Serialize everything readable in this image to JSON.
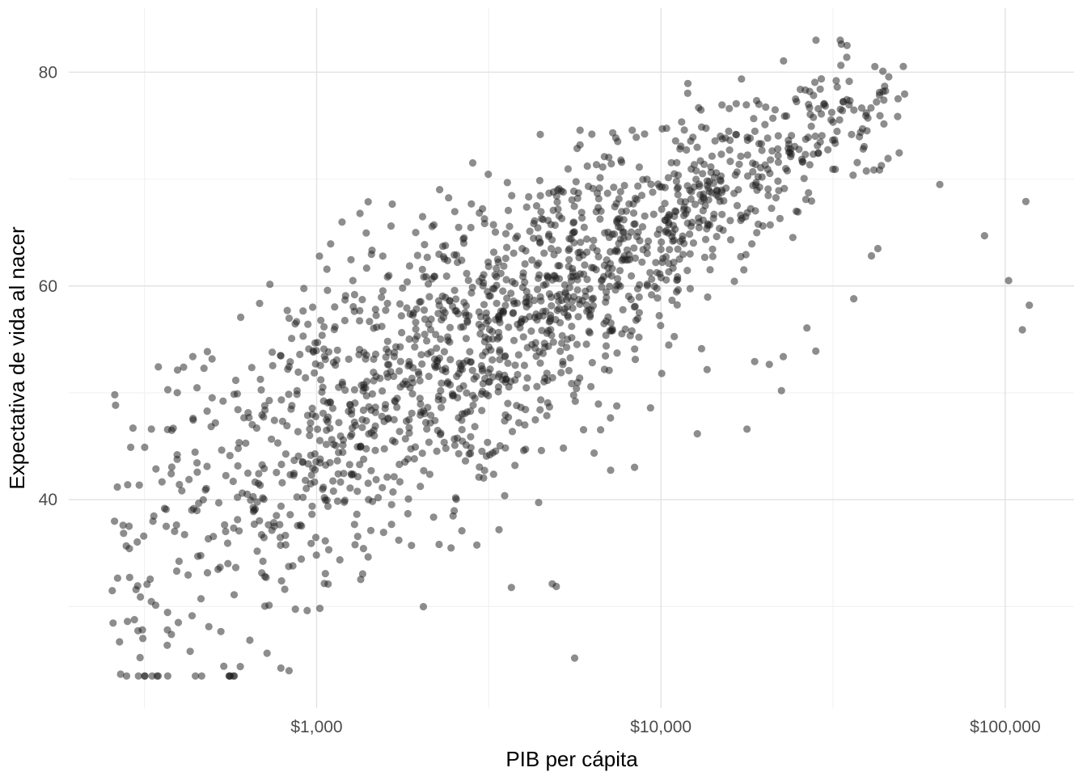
{
  "chart_data": {
    "type": "scatter",
    "title": "",
    "xlabel": "PIB per cápita",
    "ylabel": "Expectativa de vida al nacer",
    "x_scale": "log10",
    "x_ticks": [
      {
        "value": 1000,
        "log10": 3,
        "label": "$1,000"
      },
      {
        "value": 10000,
        "log10": 4,
        "label": "$10,000"
      },
      {
        "value": 100000,
        "log10": 5,
        "label": "$100,000"
      }
    ],
    "y_ticks": [
      {
        "value": 40,
        "label": "40"
      },
      {
        "value": 60,
        "label": "60"
      },
      {
        "value": 80,
        "label": "80"
      }
    ],
    "x_minor_log": [
      2.5,
      3.5,
      4.5
    ],
    "y_minor": [
      30,
      50,
      70
    ],
    "x_domain_log": [
      2.28,
      5.2
    ],
    "y_domain": [
      20.5,
      86
    ],
    "grid": {
      "show": true,
      "major_color": "#e2e2e2",
      "minor_color": "#f2f2f2",
      "background": "#ffffff"
    },
    "legend": "none",
    "point_style": {
      "radius": 4.6,
      "color": "#1c1c1c",
      "opacity": 0.5
    },
    "n_points": 1704,
    "distribution": {
      "seed": 20070424,
      "n_generated": 1690,
      "x_log_mean": 3.55,
      "x_log_sd": 0.62,
      "x_log_min": 2.4,
      "x_log_max": 4.72,
      "mean_intercept": -14,
      "mean_slope": 20,
      "mean_cap": 76.5,
      "noise_base": 9.5,
      "noise_decay": 3.0,
      "noise_min": 2.3,
      "low_tail_prob": 0.07,
      "low_tail_min_x": 3.3,
      "low_tail_drop_min": 5,
      "low_tail_drop_max": 20,
      "y_floor": 23.5,
      "y_cap": 83
    },
    "points_explicit_log10x_y": [
      [
        4.81,
        69.5
      ],
      [
        5.06,
        67.9
      ],
      [
        4.94,
        64.7
      ],
      [
        5.01,
        60.5
      ],
      [
        5.07,
        58.2
      ],
      [
        5.05,
        55.9
      ],
      [
        4.63,
        63.5
      ],
      [
        4.56,
        58.8
      ],
      [
        4.45,
        53.9
      ],
      [
        4.35,
        50.2
      ],
      [
        4.25,
        46.6
      ],
      [
        2.92,
        24.0
      ],
      [
        2.46,
        44.9
      ],
      [
        2.52,
        46.6
      ]
    ],
    "text_colors": {
      "tick": "#4d4d4d",
      "axis_title": "#000000"
    }
  }
}
